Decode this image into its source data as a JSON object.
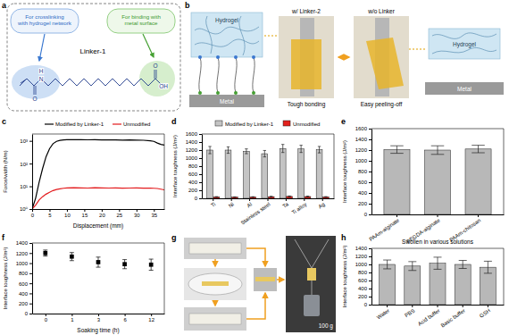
{
  "diagrams": {
    "a": {
      "label": "a",
      "linker": "Linker-1",
      "left_note": [
        "For crosslinking",
        "with hydrogel network"
      ],
      "right_note": [
        "For binding with",
        "metal surface"
      ],
      "atoms": [
        "O",
        "N",
        "H",
        "O",
        "OH"
      ]
    },
    "b": {
      "label": "b",
      "hydrogel": "Hydrogel",
      "metal": "Metal",
      "with_linker": "w/ Linker-2",
      "without_linker": "w/o Linker",
      "tough": "Tough bonding",
      "easy": "Easy peeling-off",
      "right_hydrogel": "Hydrogel",
      "right_metal": "Metal"
    },
    "g": {
      "label": "g",
      "weight": "100 g"
    }
  },
  "chart_data": [
    {
      "type": "line",
      "title": "c",
      "x_label": "Displacement (mm)",
      "y_label": "Force/width (N/m)",
      "x": [
        0,
        1,
        2,
        3,
        4,
        5,
        6,
        7,
        8,
        9,
        10,
        12,
        14,
        16,
        18,
        20,
        22,
        24,
        26,
        28,
        30,
        32,
        34,
        35,
        36,
        37,
        38
      ],
      "series": [
        {
          "name": "Modified by Linker-1",
          "color": "#000000",
          "values": [
            1,
            3,
            15,
            60,
            200,
            450,
            750,
            950,
            1050,
            1100,
            1120,
            1130,
            1120,
            1110,
            1120,
            1100,
            1110,
            1100,
            1080,
            1100,
            1080,
            1060,
            1000,
            950,
            800,
            700,
            650
          ]
        },
        {
          "name": "Unmodified",
          "color": "#e31a1c",
          "values": [
            1,
            1.5,
            2.5,
            3.5,
            4.5,
            5.5,
            6.5,
            7.2,
            7.8,
            8.2,
            8.5,
            8.6,
            8.5,
            8.4,
            8.6,
            8.5,
            8.4,
            8.5,
            8.3,
            8.4,
            8.5,
            8.3,
            8.4,
            8.2,
            8.0,
            7.5,
            7.0
          ]
        }
      ],
      "xlim": [
        0,
        38
      ],
      "xticks": [
        0,
        5,
        10,
        15,
        20,
        25,
        30,
        35
      ],
      "ylim": [
        1,
        2000
      ],
      "yticks": [
        {
          "value": 1,
          "label": "10⁰"
        },
        {
          "value": 10,
          "label": "10¹"
        },
        {
          "value": 100,
          "label": "10²"
        },
        {
          "value": 1000,
          "label": "10³"
        }
      ],
      "log": "y",
      "legend": "top"
    },
    {
      "type": "bar",
      "title": "d",
      "y_label": "Interface toughness (J/m²)",
      "categories": [
        "Ti",
        "Ni",
        "Al",
        "Stainless steel",
        "Ta",
        "Ti alloy",
        "Ag"
      ],
      "series": [
        {
          "name": "Modified by Linker-1",
          "color": "#c4c4c4",
          "values": [
            1200,
            1200,
            1170,
            1110,
            1240,
            1230,
            1210
          ],
          "errors": [
            90,
            80,
            60,
            80,
            100,
            90,
            80
          ]
        },
        {
          "name": "Unmodified",
          "color": "#e3211c",
          "values": [
            35,
            30,
            33,
            42,
            48,
            45,
            35
          ],
          "errors": [
            8,
            6,
            7,
            8,
            10,
            9,
            8
          ]
        }
      ],
      "ylim": [
        0,
        1600
      ],
      "yticks": [
        0,
        200,
        400,
        600,
        800,
        1000,
        1200,
        1400,
        1600
      ],
      "legend": "top"
    },
    {
      "type": "bar",
      "title": "e",
      "y_label": "Interface toughness (J/m²)",
      "categories": [
        "PAAm-alginate",
        "PEGDA-alginate",
        "PAAm-chitosan"
      ],
      "values": [
        1210,
        1200,
        1220
      ],
      "errors": [
        70,
        80,
        70
      ],
      "color": "#b8b8b8",
      "ylim": [
        0,
        1600
      ],
      "yticks": [
        0,
        200,
        400,
        600,
        800,
        1000,
        1200,
        1400,
        1600
      ]
    },
    {
      "type": "scatter",
      "title": "f",
      "x_label": "Soaking time (h)",
      "y_label": "Interface toughness (J/m²)",
      "categories": [
        "0",
        "1",
        "3",
        "6",
        "12"
      ],
      "values": [
        1200,
        1130,
        1020,
        980,
        970
      ],
      "errors": [
        60,
        80,
        100,
        90,
        110
      ],
      "color": "#000000",
      "marker": "square",
      "ylim": [
        0,
        1400
      ],
      "yticks": [
        0,
        200,
        400,
        600,
        800,
        1000,
        1200,
        1400
      ]
    },
    {
      "type": "bar",
      "title": "h",
      "subtitle": "Swollen in various solutions",
      "y_label": "Interface toughness (J/m²)",
      "categories": [
        "Water",
        "PBS",
        "Acid buffer",
        "Basic buffer",
        "GSH"
      ],
      "values": [
        1000,
        960,
        1030,
        1000,
        930
      ],
      "errors": [
        110,
        110,
        150,
        100,
        150
      ],
      "color": "#b8b8b8",
      "ylim": [
        0,
        1400
      ],
      "yticks": [
        0,
        200,
        400,
        600,
        800,
        1000,
        1200,
        1400
      ]
    }
  ]
}
